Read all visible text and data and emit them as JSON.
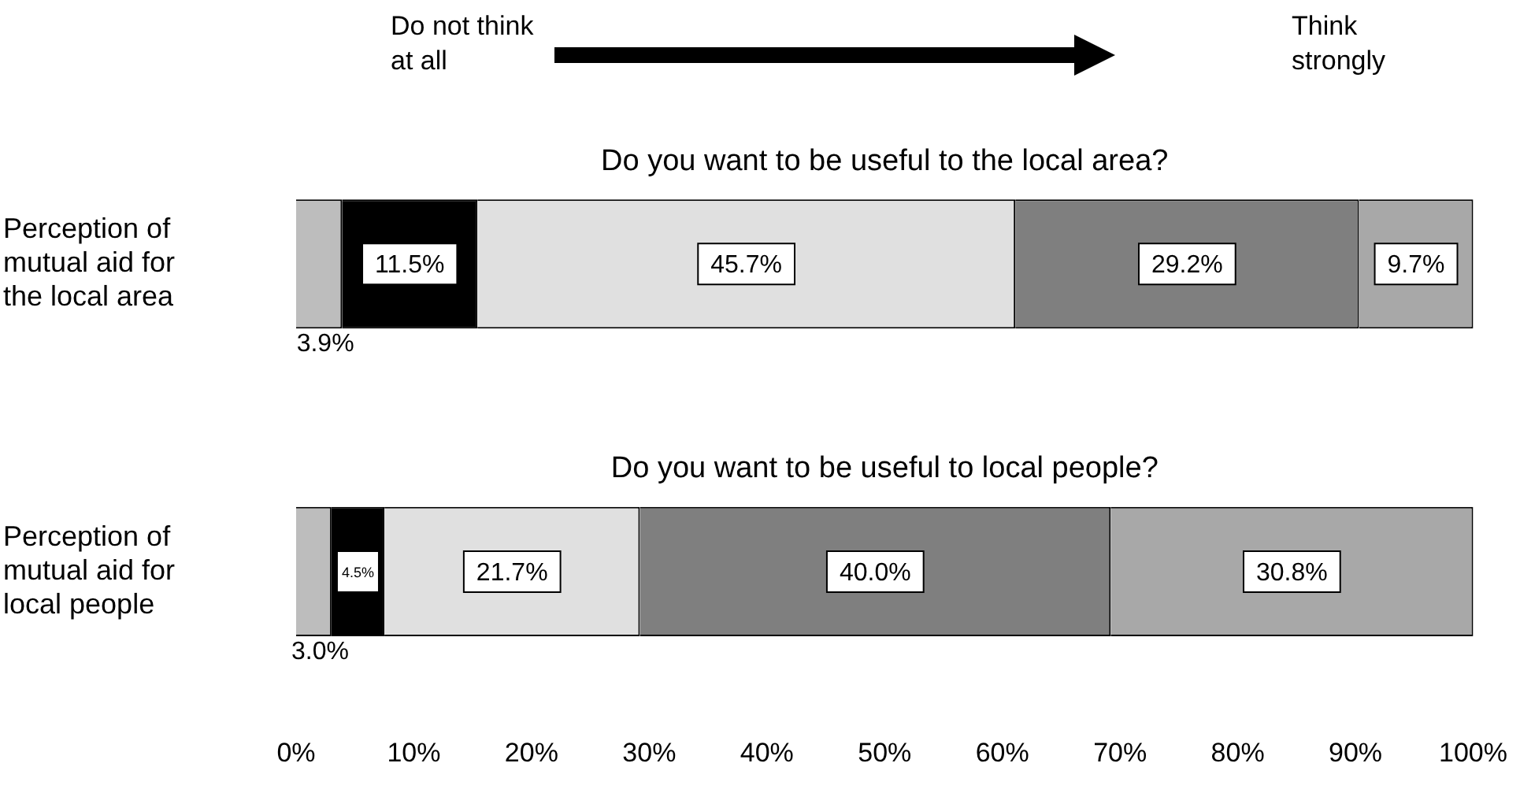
{
  "chart_data": {
    "type": "bar",
    "orientation": "horizontal",
    "stacked": true,
    "categories": [
      "Perception of mutual aid for the local area",
      "Perception of mutual aid for local people"
    ],
    "series": [
      {
        "color": "#bdbdbd",
        "values": [
          3.9,
          3.0
        ],
        "value_labels": [
          "3.9%",
          "3.0%"
        ]
      },
      {
        "color": "#000000",
        "values": [
          11.5,
          4.5
        ],
        "value_labels": [
          "11.5%",
          "4.5%"
        ]
      },
      {
        "color": "#e0e0e0",
        "values": [
          45.7,
          21.7
        ],
        "value_labels": [
          "45.7%",
          "21.7%"
        ]
      },
      {
        "color": "#7f7f7f",
        "values": [
          29.2,
          40.0
        ],
        "value_labels": [
          "29.2%",
          "40.0%"
        ]
      },
      {
        "color": "#a8a8a8",
        "values": [
          9.7,
          30.8
        ],
        "value_labels": [
          "9.7%",
          "30.8%"
        ]
      }
    ],
    "xlim": [
      0,
      100
    ],
    "xticks": [
      {
        "value": 0,
        "label": "0%"
      },
      {
        "value": 10,
        "label": "10%"
      },
      {
        "value": 20,
        "label": "20%"
      },
      {
        "value": 30,
        "label": "30%"
      },
      {
        "value": 40,
        "label": "40%"
      },
      {
        "value": 50,
        "label": "50%"
      },
      {
        "value": 60,
        "label": "60%"
      },
      {
        "value": 70,
        "label": "70%"
      },
      {
        "value": 80,
        "label": "80%"
      },
      {
        "value": 90,
        "label": "90%"
      },
      {
        "value": 100,
        "label": "100%"
      }
    ],
    "grid": false,
    "legend": false,
    "annotations": [
      "Do not think at all",
      "Think strongly",
      "Do you want to be useful to the local area?",
      "Do you want to be useful to local people?"
    ]
  }
}
